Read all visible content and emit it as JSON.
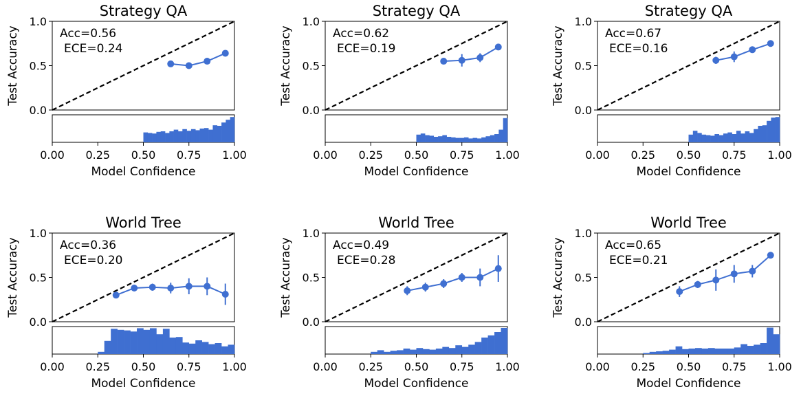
{
  "chart_data": [
    {
      "type": "line",
      "title": "Strategy QA",
      "xlabel": "Model Confidence",
      "ylabel": "Test Accuracy",
      "annotation": [
        "Acc=0.56",
        "ECE=0.24"
      ],
      "xlim": [
        0,
        1
      ],
      "ylim": [
        0,
        1
      ],
      "xticks": [
        "0.00",
        "0.25",
        "0.50",
        "0.75",
        "1.00"
      ],
      "yticks": [
        "0.0",
        "0.5",
        "1.0"
      ],
      "diagonal": true,
      "series": [
        {
          "x": [
            0.65,
            0.75,
            0.85,
            0.95
          ],
          "y": [
            0.52,
            0.5,
            0.55,
            0.64
          ],
          "err": [
            0.01,
            0.01,
            0.01,
            0.01
          ]
        }
      ],
      "hist_range": [
        0.5,
        1.0
      ],
      "hist": [
        0.36,
        0.34,
        0.32,
        0.38,
        0.4,
        0.34,
        0.4,
        0.46,
        0.4,
        0.48,
        0.42,
        0.48,
        0.44,
        0.5,
        0.52,
        0.46,
        0.62,
        0.6,
        0.72,
        0.82,
        0.92
      ]
    },
    {
      "type": "line",
      "title": "Strategy QA",
      "xlabel": "Model Confidence",
      "ylabel": "Test Accuracy",
      "annotation": [
        "Acc=0.62",
        "ECE=0.19"
      ],
      "xlim": [
        0,
        1
      ],
      "ylim": [
        0,
        1
      ],
      "xticks": [
        "0.00",
        "0.25",
        "0.50",
        "0.75",
        "1.00"
      ],
      "yticks": [
        "0.0",
        "0.5",
        "1.0"
      ],
      "diagonal": true,
      "series": [
        {
          "x": [
            0.65,
            0.75,
            0.85,
            0.95
          ],
          "y": [
            0.55,
            0.56,
            0.59,
            0.71
          ],
          "err": [
            0.02,
            0.07,
            0.05,
            0.02
          ]
        }
      ],
      "hist_range": [
        0.5,
        1.0
      ],
      "hist": [
        0.28,
        0.32,
        0.26,
        0.24,
        0.2,
        0.22,
        0.26,
        0.2,
        0.18,
        0.16,
        0.16,
        0.18,
        0.14,
        0.16,
        0.14,
        0.18,
        0.22,
        0.26,
        0.3,
        0.46,
        0.88
      ]
    },
    {
      "type": "line",
      "title": "Strategy QA",
      "xlabel": "Model Confidence",
      "ylabel": "Test Accuracy",
      "annotation": [
        "Acc=0.67",
        "ECE=0.16"
      ],
      "xlim": [
        0,
        1
      ],
      "ylim": [
        0,
        1
      ],
      "xticks": [
        "0.00",
        "0.25",
        "0.50",
        "0.75",
        "1.00"
      ],
      "yticks": [
        "0.0",
        "0.5",
        "1.0"
      ],
      "diagonal": true,
      "series": [
        {
          "x": [
            0.65,
            0.75,
            0.85,
            0.95
          ],
          "y": [
            0.56,
            0.6,
            0.68,
            0.75
          ],
          "err": [
            0.04,
            0.06,
            0.02,
            0.02
          ]
        }
      ],
      "hist_range": [
        0.5,
        1.0
      ],
      "hist": [
        0.28,
        0.42,
        0.34,
        0.28,
        0.26,
        0.24,
        0.3,
        0.26,
        0.32,
        0.36,
        0.3,
        0.42,
        0.32,
        0.4,
        0.34,
        0.48,
        0.6,
        0.62,
        0.78,
        0.9,
        0.92
      ]
    },
    {
      "type": "line",
      "title": "World Tree",
      "xlabel": "Model Confidence",
      "ylabel": "Test Accuracy",
      "annotation": [
        "Acc=0.36",
        "ECE=0.20"
      ],
      "xlim": [
        0,
        1
      ],
      "ylim": [
        0,
        1
      ],
      "xticks": [
        "0.00",
        "0.25",
        "0.50",
        "0.75",
        "1.00"
      ],
      "yticks": [
        "0.0",
        "0.5",
        "1.0"
      ],
      "diagonal": true,
      "series": [
        {
          "x": [
            0.35,
            0.45,
            0.55,
            0.65,
            0.75,
            0.85,
            0.95
          ],
          "y": [
            0.3,
            0.38,
            0.39,
            0.38,
            0.4,
            0.4,
            0.31
          ],
          "err": [
            0.03,
            0.03,
            0.04,
            0.06,
            0.09,
            0.1,
            0.12
          ]
        }
      ],
      "hist_range": [
        0.25,
        1.0
      ],
      "hist": [
        0.08,
        0.48,
        0.92,
        0.88,
        0.86,
        0.82,
        0.94,
        0.88,
        0.94,
        0.72,
        0.92,
        0.6,
        0.62,
        0.42,
        0.38,
        0.5,
        0.44,
        0.36,
        0.4,
        0.28,
        0.34
      ]
    },
    {
      "type": "line",
      "title": "World Tree",
      "xlabel": "Model Confidence",
      "ylabel": "Test Accuracy",
      "annotation": [
        "Acc=0.49",
        "ECE=0.28"
      ],
      "xlim": [
        0,
        1
      ],
      "ylim": [
        0,
        1
      ],
      "xticks": [
        "0.00",
        "0.25",
        "0.50",
        "0.75",
        "1.00"
      ],
      "yticks": [
        "0.0",
        "0.5",
        "1.0"
      ],
      "diagonal": true,
      "series": [
        {
          "x": [
            0.45,
            0.55,
            0.65,
            0.75,
            0.85,
            0.95
          ],
          "y": [
            0.35,
            0.39,
            0.43,
            0.5,
            0.5,
            0.6
          ],
          "err": [
            0.05,
            0.05,
            0.05,
            0.05,
            0.1,
            0.15
          ]
        }
      ],
      "hist_range": [
        0.25,
        1.0
      ],
      "hist": [
        0.08,
        0.14,
        0.08,
        0.12,
        0.14,
        0.2,
        0.16,
        0.22,
        0.18,
        0.16,
        0.2,
        0.26,
        0.22,
        0.32,
        0.26,
        0.34,
        0.44,
        0.6,
        0.68,
        0.8,
        0.95
      ]
    },
    {
      "type": "line",
      "title": "World Tree",
      "xlabel": "Model Confidence",
      "ylabel": "Test Accuracy",
      "annotation": [
        "Acc=0.65",
        "ECE=0.21"
      ],
      "xlim": [
        0,
        1
      ],
      "ylim": [
        0,
        1
      ],
      "xticks": [
        "0.00",
        "0.25",
        "0.50",
        "0.75",
        "1.00"
      ],
      "yticks": [
        "0.0",
        "0.5",
        "1.0"
      ],
      "diagonal": true,
      "series": [
        {
          "x": [
            0.45,
            0.55,
            0.65,
            0.75,
            0.85,
            0.95
          ],
          "y": [
            0.34,
            0.42,
            0.47,
            0.54,
            0.57,
            0.75
          ],
          "err": [
            0.06,
            0.04,
            0.12,
            0.1,
            0.07,
            0.03
          ]
        }
      ],
      "hist_range": [
        0.25,
        1.0
      ],
      "hist": [
        0.04,
        0.08,
        0.1,
        0.12,
        0.16,
        0.28,
        0.18,
        0.2,
        0.22,
        0.2,
        0.22,
        0.2,
        0.2,
        0.2,
        0.24,
        0.36,
        0.3,
        0.34,
        0.4,
        0.96,
        0.72
      ]
    }
  ]
}
